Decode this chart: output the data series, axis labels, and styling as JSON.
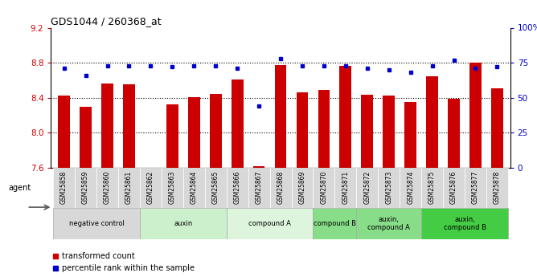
{
  "title": "GDS1044 / 260368_at",
  "samples": [
    "GSM25858",
    "GSM25859",
    "GSM25860",
    "GSM25861",
    "GSM25862",
    "GSM25863",
    "GSM25864",
    "GSM25865",
    "GSM25866",
    "GSM25867",
    "GSM25868",
    "GSM25869",
    "GSM25870",
    "GSM25871",
    "GSM25872",
    "GSM25873",
    "GSM25874",
    "GSM25875",
    "GSM25876",
    "GSM25877",
    "GSM25878"
  ],
  "bar_values": [
    8.42,
    8.3,
    8.56,
    8.55,
    7.6,
    8.32,
    8.41,
    8.44,
    8.61,
    7.62,
    8.77,
    8.46,
    8.49,
    8.76,
    8.43,
    8.42,
    8.35,
    8.64,
    8.39,
    8.8,
    8.51
  ],
  "dot_values": [
    71,
    66,
    73,
    73,
    73,
    72,
    73,
    73,
    71,
    44,
    78,
    73,
    73,
    73,
    71,
    70,
    68,
    73,
    77,
    71,
    72
  ],
  "ylim_left": [
    7.6,
    9.2
  ],
  "ylim_right": [
    0,
    100
  ],
  "yticks_left": [
    7.6,
    8.0,
    8.4,
    8.8,
    9.2
  ],
  "yticks_right": [
    0,
    25,
    50,
    75,
    100
  ],
  "bar_color": "#cc0000",
  "dot_color": "#0000cc",
  "groups": [
    {
      "label": "negative control",
      "start": 0,
      "end": 4,
      "color": "#d8d8d8"
    },
    {
      "label": "auxin",
      "start": 4,
      "end": 8,
      "color": "#ccf0cc"
    },
    {
      "label": "compound A",
      "start": 8,
      "end": 12,
      "color": "#ddf5dd"
    },
    {
      "label": "compound B",
      "start": 12,
      "end": 14,
      "color": "#88dd88"
    },
    {
      "label": "auxin,\ncompound A",
      "start": 14,
      "end": 17,
      "color": "#88dd88"
    },
    {
      "label": "auxin,\ncompound B",
      "start": 17,
      "end": 21,
      "color": "#44cc44"
    }
  ],
  "agent_label": "agent",
  "legend_bar": "transformed count",
  "legend_dot": "percentile rank within the sample",
  "right_axis_label_color": "#0000cc",
  "left_axis_label_color": "#cc0000"
}
